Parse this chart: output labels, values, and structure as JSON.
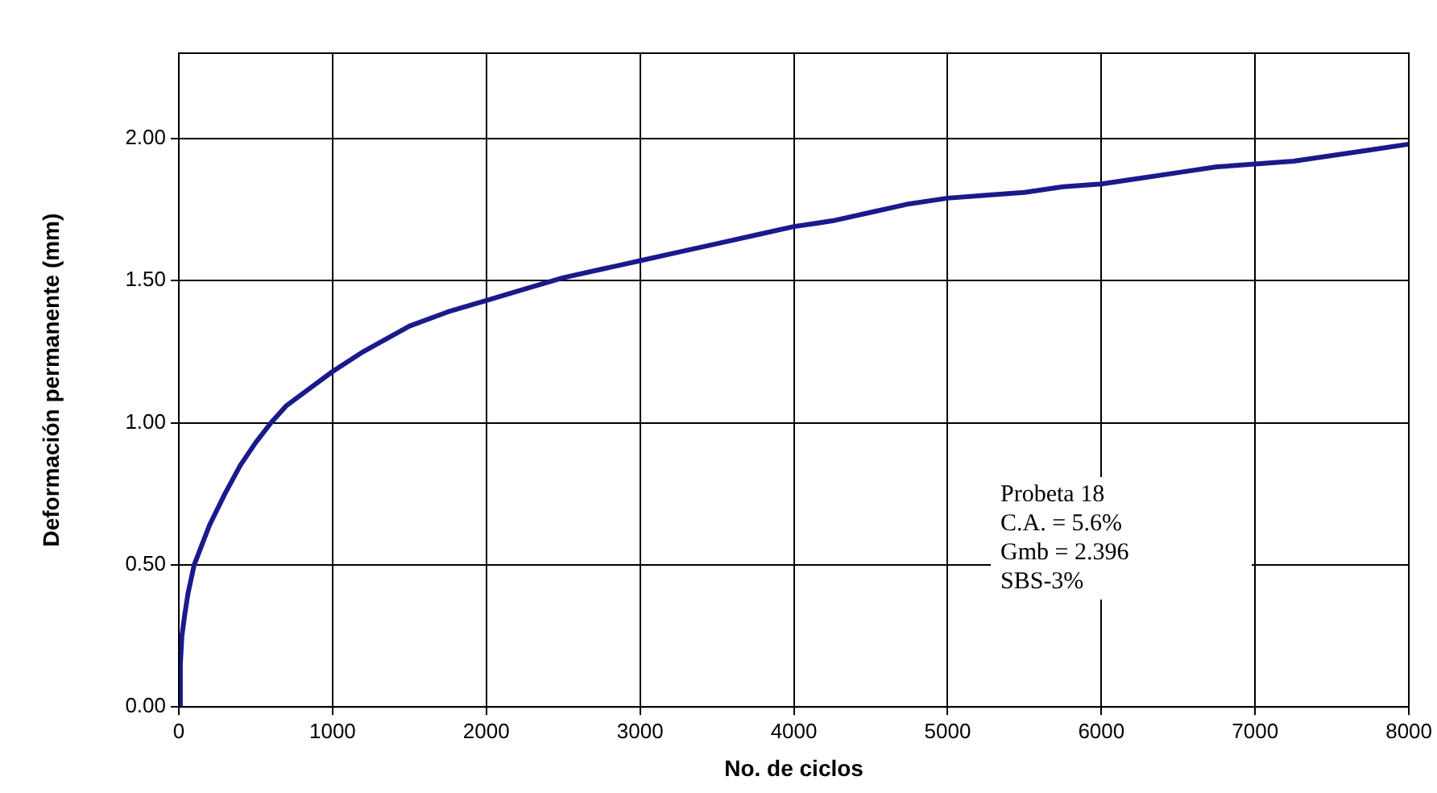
{
  "chart_data": {
    "type": "line",
    "xlabel": "No. de ciclos",
    "ylabel": "Deformación permanente (mm)",
    "x": [
      0,
      10,
      20,
      40,
      60,
      100,
      150,
      200,
      300,
      400,
      500,
      600,
      700,
      850,
      1000,
      1200,
      1500,
      1750,
      2000,
      2250,
      2500,
      2750,
      3000,
      3250,
      3500,
      3750,
      4000,
      4250,
      4500,
      4750,
      5000,
      5250,
      5500,
      5750,
      6000,
      6250,
      6500,
      6750,
      7000,
      7250,
      7500,
      7750,
      8000
    ],
    "series": [
      {
        "color": "#1a1a8c",
        "values": [
          0,
          0.15,
          0.25,
          0.33,
          0.4,
          0.5,
          0.57,
          0.64,
          0.75,
          0.85,
          0.93,
          1.0,
          1.06,
          1.12,
          1.18,
          1.25,
          1.34,
          1.39,
          1.43,
          1.47,
          1.51,
          1.54,
          1.57,
          1.6,
          1.63,
          1.66,
          1.69,
          1.71,
          1.74,
          1.77,
          1.79,
          1.8,
          1.81,
          1.83,
          1.84,
          1.86,
          1.88,
          1.9,
          1.91,
          1.92,
          1.94,
          1.96,
          1.98
        ]
      }
    ],
    "xlim": [
      0,
      8000
    ],
    "xticks": [
      0,
      1000,
      2000,
      3000,
      4000,
      5000,
      6000,
      7000,
      8000
    ],
    "ylim": [
      0,
      2.3
    ],
    "yticks": [
      {
        "value": 0,
        "label": "0.00"
      },
      {
        "value": 0.5,
        "label": "0.50"
      },
      {
        "value": 1,
        "label": "1.00"
      },
      {
        "value": 1.5,
        "label": "1.50"
      },
      {
        "value": 2,
        "label": "2.00"
      }
    ],
    "grid": true,
    "legend": false,
    "marker": "none",
    "line_style": "solid",
    "annotations": [
      "Probeta 18",
      "C.A. = 5.6%",
      "Gmb = 2.396",
      "SBS-3%"
    ]
  }
}
